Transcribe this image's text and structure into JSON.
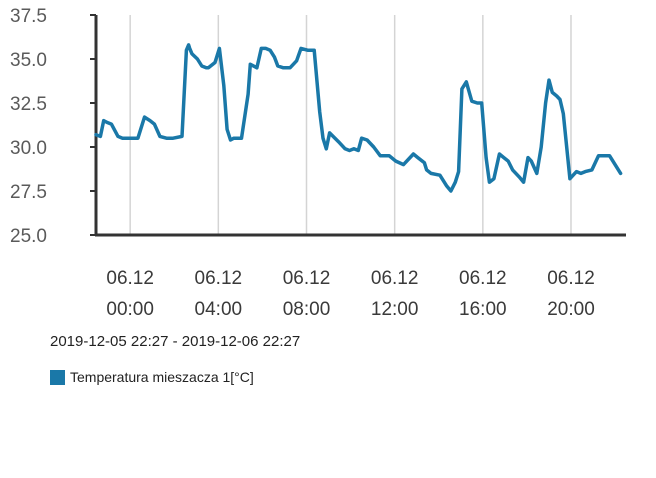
{
  "chart_data": {
    "type": "line",
    "ylim": [
      25.0,
      37.5
    ],
    "yticks": [
      "25.0",
      "27.5",
      "30.0",
      "32.5",
      "35.0",
      "37.5"
    ],
    "ytick_values": [
      25.0,
      27.5,
      30.0,
      32.5,
      35.0,
      37.5
    ],
    "xticks": [
      {
        "date": "06.12",
        "time": "00:00",
        "t": 1.55
      },
      {
        "date": "06.12",
        "time": "04:00",
        "t": 5.55
      },
      {
        "date": "06.12",
        "time": "08:00",
        "t": 9.55
      },
      {
        "date": "06.12",
        "time": "12:00",
        "t": 13.55
      },
      {
        "date": "06.12",
        "time": "16:00",
        "t": 17.55
      },
      {
        "date": "06.12",
        "time": "20:00",
        "t": 21.55
      }
    ],
    "xlim": [
      0,
      24
    ],
    "grid": "vertical",
    "range_text": "2019-12-05 22:27 - 2019-12-06 22:27",
    "series": [
      {
        "name": "Temperatura mieszacza 1[°C]",
        "color": "#1a78a8",
        "x": [
          0.0,
          0.2,
          0.35,
          0.5,
          0.7,
          1.0,
          1.2,
          1.5,
          1.9,
          2.2,
          2.45,
          2.65,
          2.9,
          3.2,
          3.5,
          3.9,
          4.1,
          4.2,
          4.25,
          4.35,
          4.6,
          4.8,
          5.0,
          5.1,
          5.4,
          5.6,
          5.8,
          5.95,
          6.1,
          6.25,
          6.4,
          6.6,
          6.9,
          7.0,
          7.3,
          7.5,
          7.7,
          7.9,
          8.1,
          8.25,
          8.5,
          8.8,
          9.1,
          9.3,
          9.6,
          9.9,
          10.15,
          10.3,
          10.45,
          10.6,
          11.0,
          11.3,
          11.5,
          11.7,
          11.9,
          12.05,
          12.3,
          12.6,
          12.9,
          13.3,
          13.6,
          13.95,
          14.4,
          14.6,
          14.9,
          15.0,
          15.2,
          15.6,
          15.9,
          16.1,
          16.3,
          16.45,
          16.6,
          16.8,
          17.05,
          17.3,
          17.5,
          17.7,
          17.85,
          18.05,
          18.3,
          18.5,
          18.7,
          18.9,
          19.2,
          19.4,
          19.6,
          19.75,
          20.0,
          20.2,
          20.4,
          20.55,
          20.7,
          20.9,
          21.05,
          21.2,
          21.5,
          21.8,
          22.0,
          22.2,
          22.5,
          22.8,
          23.0,
          23.3,
          23.8
        ],
        "y": [
          30.7,
          30.6,
          31.5,
          31.4,
          31.3,
          30.6,
          30.5,
          30.5,
          30.5,
          31.7,
          31.5,
          31.3,
          30.6,
          30.5,
          30.5,
          30.6,
          35.5,
          35.8,
          35.6,
          35.3,
          35.0,
          34.6,
          34.5,
          34.5,
          34.8,
          35.6,
          33.5,
          31.0,
          30.4,
          30.5,
          30.5,
          30.5,
          33.0,
          34.7,
          34.5,
          35.6,
          35.6,
          35.5,
          35.1,
          34.6,
          34.5,
          34.5,
          34.9,
          35.6,
          35.5,
          35.5,
          32.0,
          30.5,
          29.9,
          30.8,
          30.3,
          29.9,
          29.8,
          29.9,
          29.8,
          30.5,
          30.4,
          30.0,
          29.5,
          29.5,
          29.2,
          29.0,
          29.6,
          29.4,
          29.1,
          28.7,
          28.5,
          28.4,
          27.8,
          27.5,
          28.0,
          28.6,
          33.3,
          33.7,
          32.6,
          32.5,
          32.5,
          29.4,
          28.0,
          28.2,
          29.6,
          29.4,
          29.2,
          28.7,
          28.3,
          28.0,
          29.4,
          29.2,
          28.5,
          30.0,
          32.5,
          33.8,
          33.1,
          32.9,
          32.7,
          31.9,
          28.2,
          28.6,
          28.5,
          28.6,
          28.7,
          29.5,
          29.5,
          29.5,
          28.5
        ]
      }
    ]
  },
  "legend": {
    "label": "Temperatura mieszacza 1[°C]",
    "color": "#1a78a8"
  },
  "range_label": "2019-12-05 22:27 - 2019-12-06 22:27"
}
